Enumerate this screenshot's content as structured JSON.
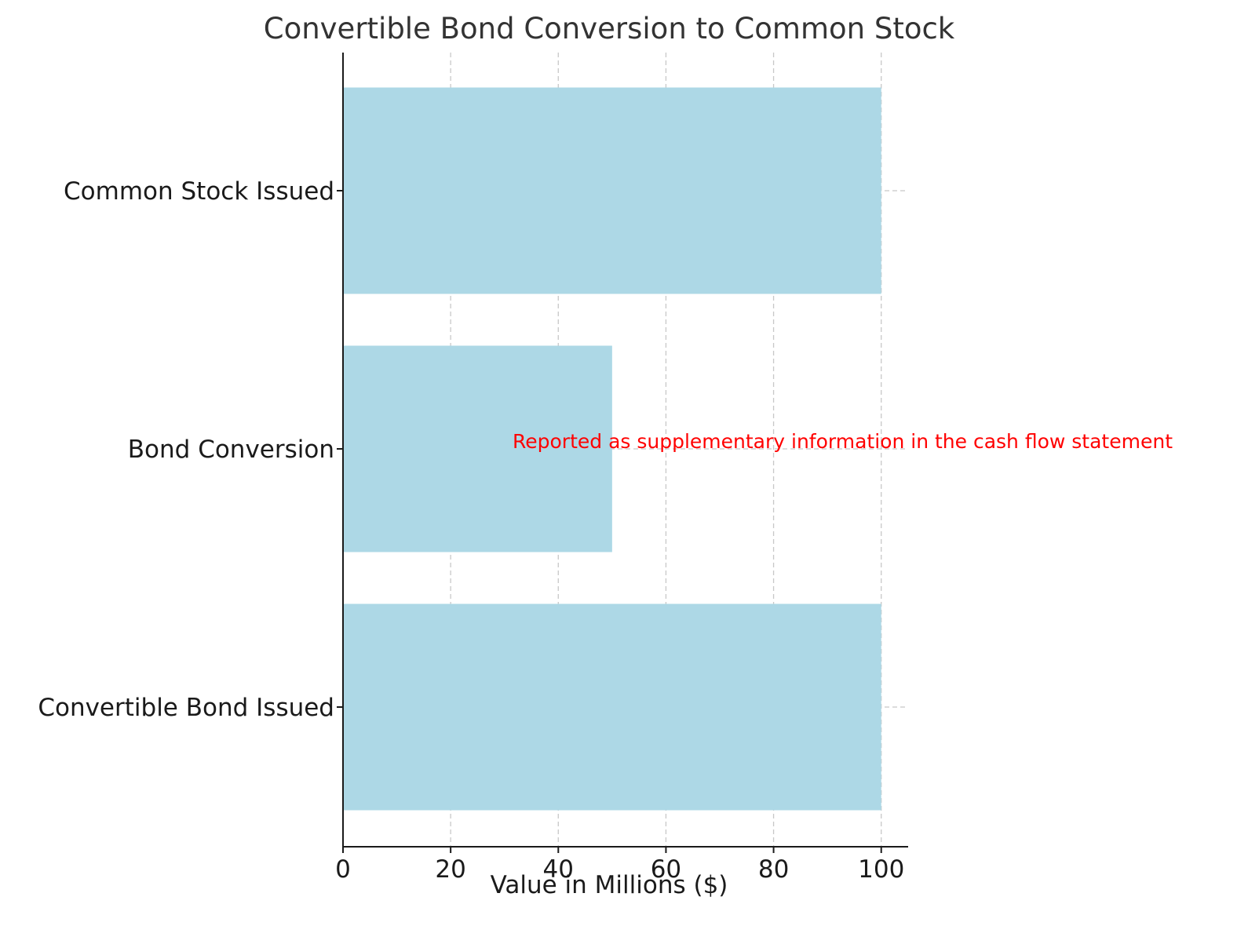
{
  "chart_data": {
    "type": "bar",
    "orientation": "horizontal",
    "title": "Convertible Bond Conversion to Common Stock",
    "xlabel": "Value in Millions ($)",
    "ylabel": "",
    "categories": [
      "Convertible Bond Issued",
      "Bond Conversion",
      "Common Stock Issued"
    ],
    "values": [
      100,
      50,
      100
    ],
    "xlim": [
      0,
      105
    ],
    "xticks": [
      0,
      20,
      40,
      60,
      80,
      100
    ],
    "xtick_labels": [
      "0",
      "20",
      "40",
      "60",
      "80",
      "100"
    ],
    "grid": true,
    "bar_color": "#add8e6",
    "annotation": {
      "text": "Reported as supplementary information in the cash flow statement",
      "x": 31.5,
      "category": "Bond Conversion",
      "color": "#ff0000"
    }
  }
}
